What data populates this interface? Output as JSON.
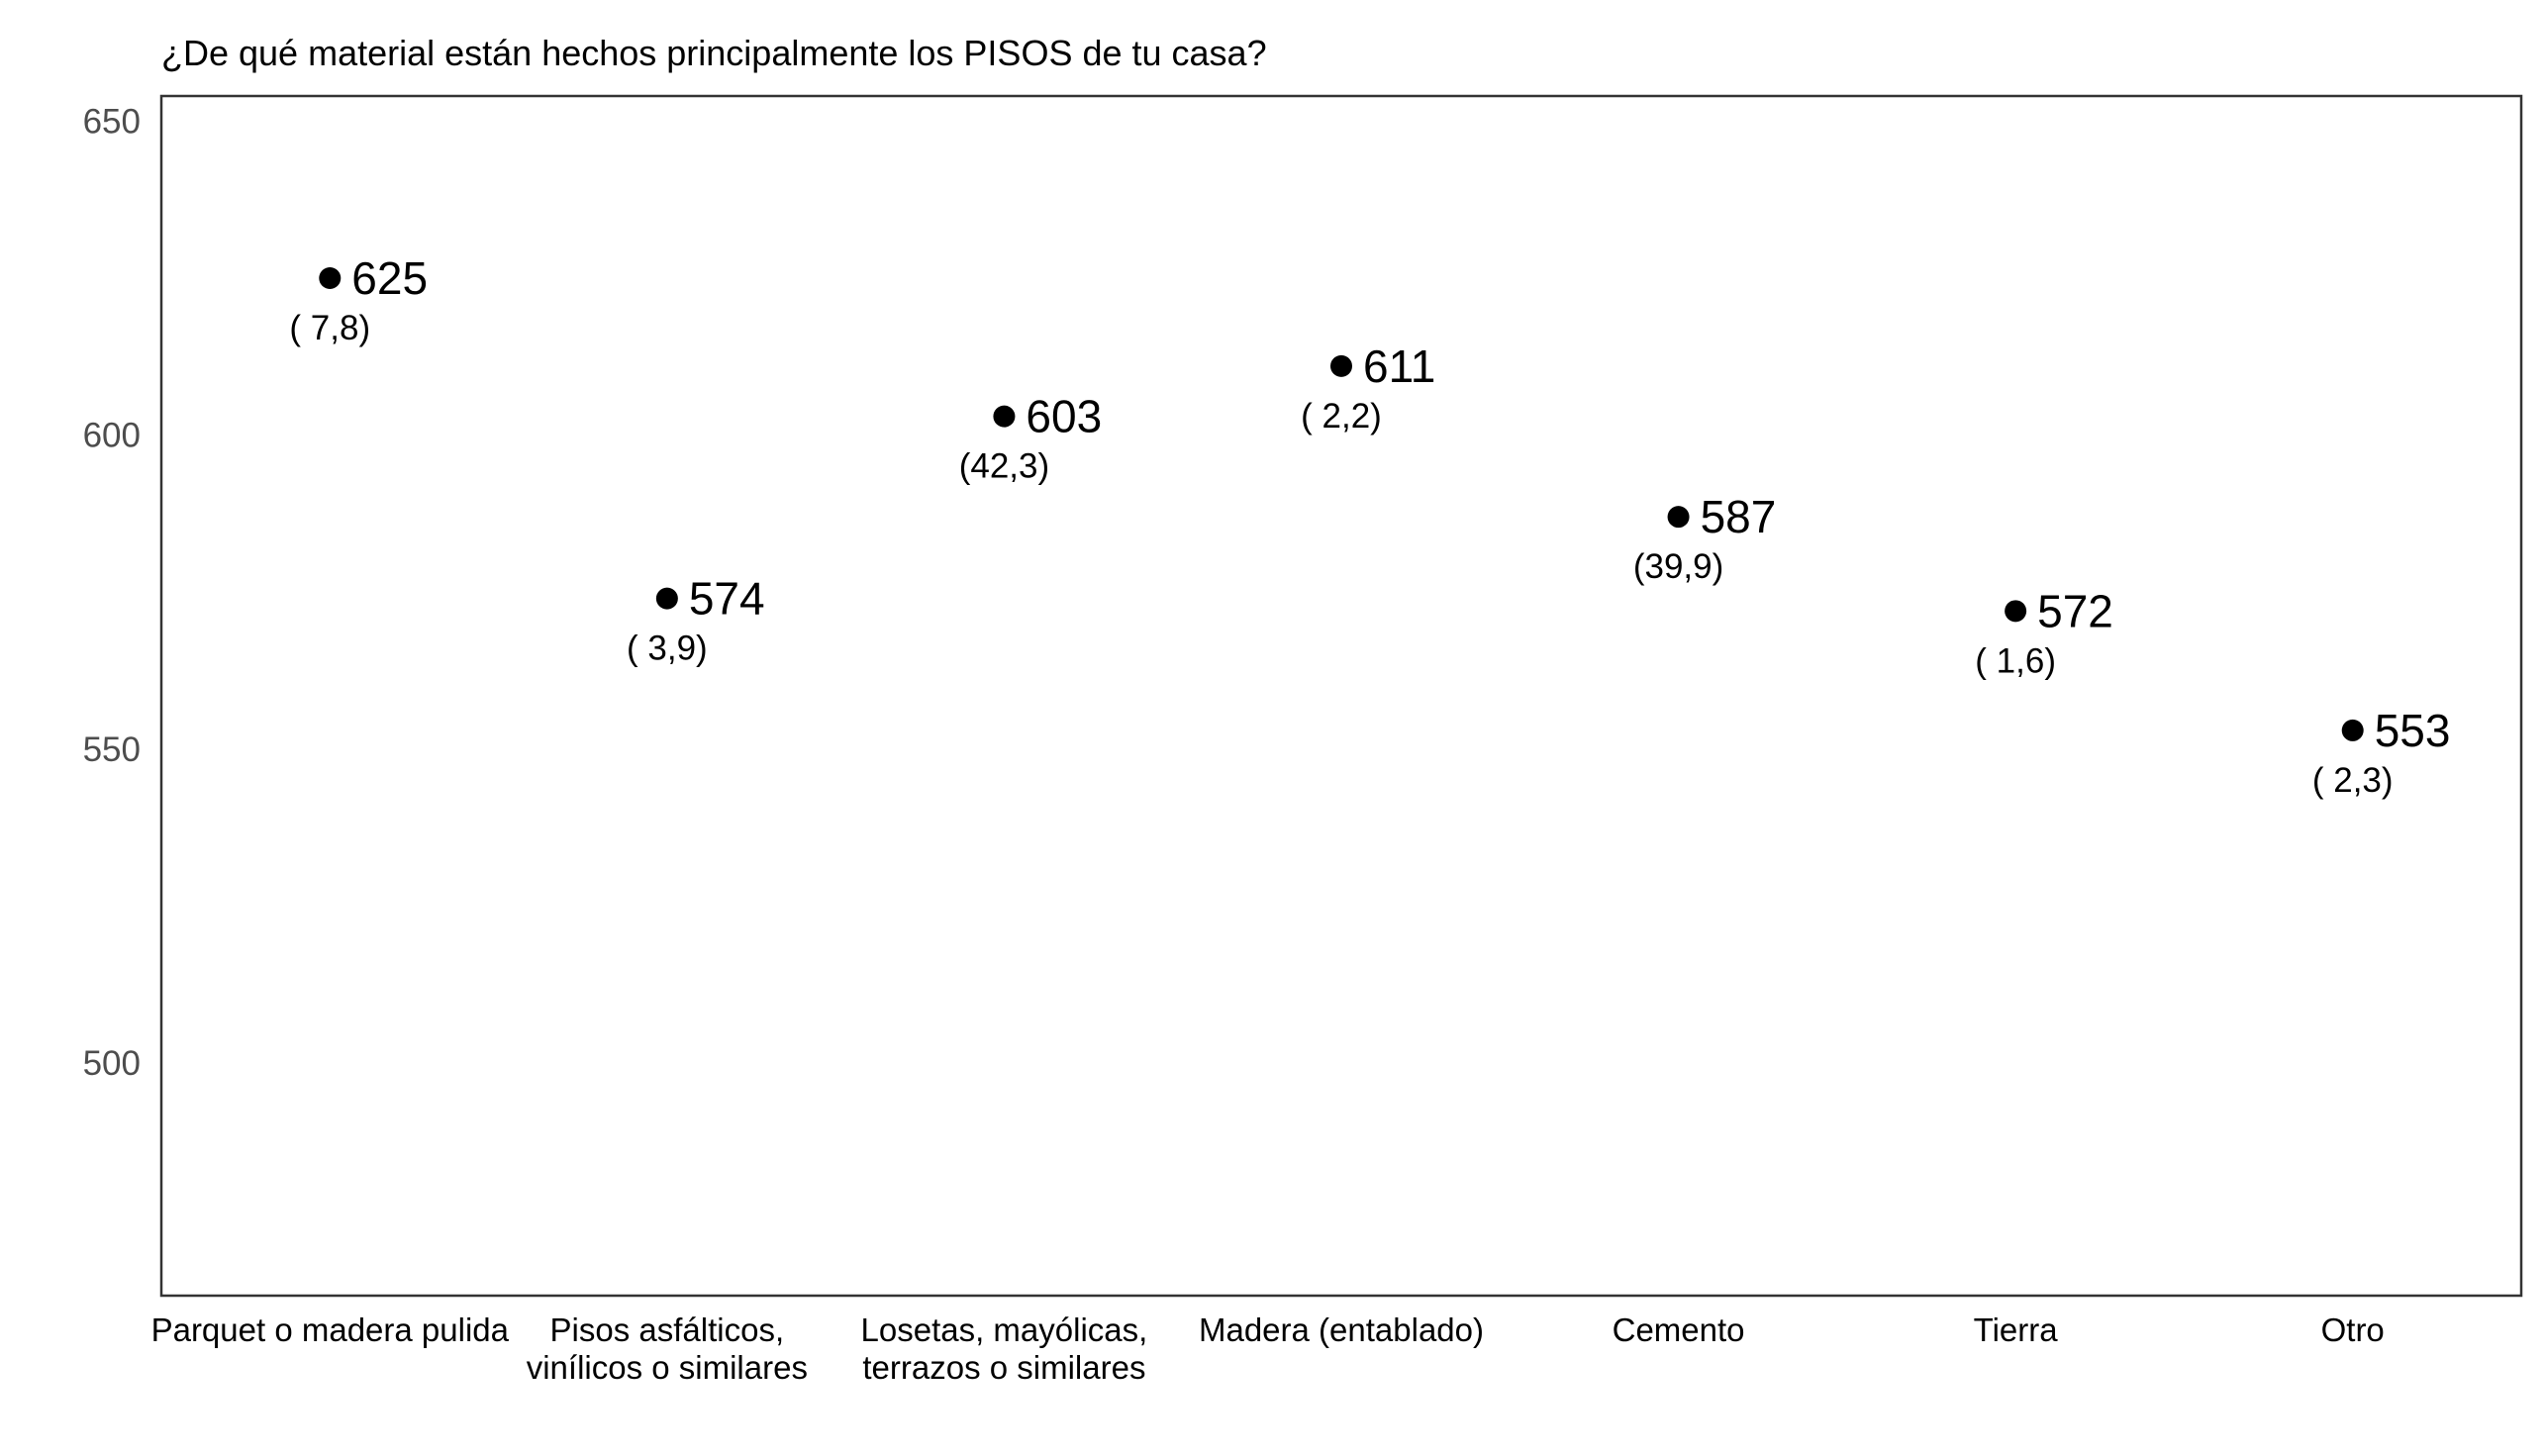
{
  "chart_data": {
    "type": "scatter",
    "title": "¿De qué material están hechos principalmente los PISOS de tu casa?",
    "xlabel": "",
    "ylabel": "",
    "ylim": [
      463,
      654
    ],
    "yticks": [
      500,
      550,
      600,
      650
    ],
    "grid": false,
    "categories": [
      [
        "Parquet o madera pulida"
      ],
      [
        "Pisos asfálticos,",
        "vinílicos o similares"
      ],
      [
        "Losetas, mayólicas,",
        "terrazos o similares"
      ],
      [
        "Madera (entablado)"
      ],
      [
        "Cemento"
      ],
      [
        "Tierra"
      ],
      [
        "Otro"
      ]
    ],
    "values": [
      625,
      574,
      603,
      611,
      587,
      572,
      553
    ],
    "value_labels": [
      "625",
      "574",
      "603",
      "611",
      "587",
      "572",
      "553"
    ],
    "percent_labels": [
      "( 7,8)",
      "( 3,9)",
      "(42,3)",
      "( 2,2)",
      "(39,9)",
      "( 1,6)",
      "( 2,3)"
    ],
    "point_color": "#000000"
  }
}
